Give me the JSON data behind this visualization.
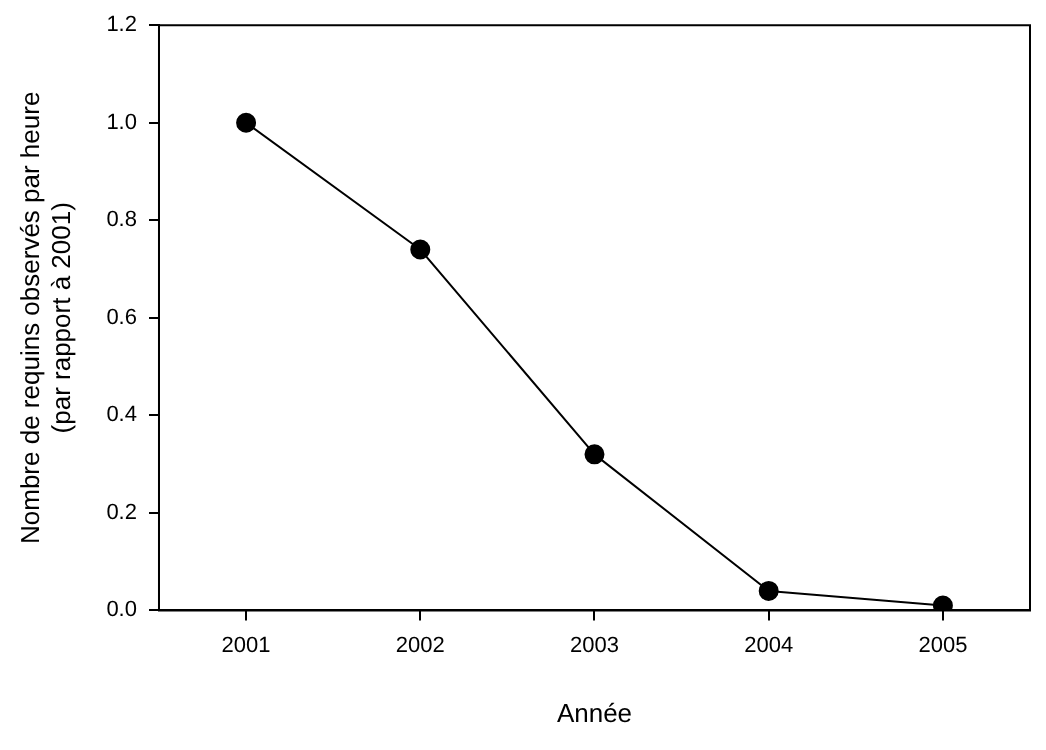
{
  "chart_data": {
    "type": "line",
    "xlabel": "Année",
    "ylabel": "Nombre de requins observés par heure\n(par rapport à 2001)",
    "x": [
      2001,
      2002,
      2003,
      2004,
      2005
    ],
    "series": [
      {
        "color": "#000000",
        "values": [
          1.0,
          0.74,
          0.32,
          0.04,
          0.01
        ]
      }
    ],
    "xlim": [
      2000.5,
      2005.5
    ],
    "xticks": [
      2001,
      2002,
      2003,
      2004,
      2005
    ],
    "ylim": [
      0,
      1.2
    ],
    "yticks": [
      {
        "value": 0,
        "label": "0.0"
      },
      {
        "value": 0.2,
        "label": "0.2"
      },
      {
        "value": 0.4,
        "label": "0.4"
      },
      {
        "value": 0.6,
        "label": "0.6"
      },
      {
        "value": 0.8,
        "label": "0.8"
      },
      {
        "value": 1.0,
        "label": "1.0"
      },
      {
        "value": 1.2,
        "label": "1.2"
      }
    ],
    "grid": false,
    "legend": false,
    "marker": "circle",
    "line_style": "solid"
  }
}
